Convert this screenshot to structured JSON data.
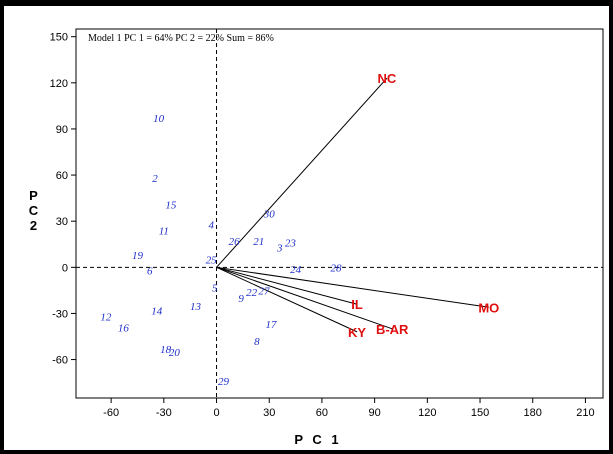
{
  "chart_data": {
    "type": "scatter",
    "annotation": "Model 1 PC 1 = 64% PC 2 = 22% Sum = 86%",
    "xlabel": "P C 1",
    "ylabel_lines": [
      "P",
      "C",
      "2"
    ],
    "xlim": [
      -80,
      220
    ],
    "ylim": [
      -85,
      155
    ],
    "xticks": [
      -60,
      -30,
      0,
      30,
      60,
      90,
      120,
      150,
      180,
      210
    ],
    "yticks": [
      150,
      120,
      90,
      60,
      30,
      0,
      -30,
      -60
    ],
    "grid": false,
    "reference_lines": {
      "x": 0,
      "y": 0,
      "style": "dashed"
    },
    "points": [
      {
        "label": "10",
        "x": -33,
        "y": 97
      },
      {
        "label": "2",
        "x": -35,
        "y": 58
      },
      {
        "label": "15",
        "x": -26,
        "y": 41
      },
      {
        "label": "11",
        "x": -30,
        "y": 24
      },
      {
        "label": "4",
        "x": -3,
        "y": 28
      },
      {
        "label": "30",
        "x": 30,
        "y": 35
      },
      {
        "label": "26",
        "x": 10,
        "y": 17
      },
      {
        "label": "21",
        "x": 24,
        "y": 17
      },
      {
        "label": "3",
        "x": 36,
        "y": 13
      },
      {
        "label": "23",
        "x": 42,
        "y": 16
      },
      {
        "label": "19",
        "x": -45,
        "y": 8
      },
      {
        "label": "25",
        "x": -3,
        "y": 5
      },
      {
        "label": "6",
        "x": -38,
        "y": -2
      },
      {
        "label": "24",
        "x": 45,
        "y": -1
      },
      {
        "label": "28",
        "x": 68,
        "y": 0
      },
      {
        "label": "5",
        "x": -1,
        "y": -13
      },
      {
        "label": "22",
        "x": 20,
        "y": -16
      },
      {
        "label": "27",
        "x": 27,
        "y": -15
      },
      {
        "label": "9",
        "x": 14,
        "y": -20
      },
      {
        "label": "13",
        "x": -12,
        "y": -25
      },
      {
        "label": "12",
        "x": -63,
        "y": -32
      },
      {
        "label": "14",
        "x": -34,
        "y": -28
      },
      {
        "label": "16",
        "x": -53,
        "y": -39
      },
      {
        "label": "17",
        "x": 31,
        "y": -37
      },
      {
        "label": "8",
        "x": 23,
        "y": -48
      },
      {
        "label": "18",
        "x": -29,
        "y": -53
      },
      {
        "label": "20",
        "x": -24,
        "y": -55
      },
      {
        "label": "29",
        "x": 4,
        "y": -74
      }
    ],
    "vectors": [
      {
        "label": "NC",
        "x": 97,
        "y": 123
      },
      {
        "label": "IL",
        "x": 80,
        "y": -24
      },
      {
        "label": "MO",
        "x": 155,
        "y": -26
      },
      {
        "label": "B-AR",
        "x": 100,
        "y": -40
      },
      {
        "label": "KY",
        "x": 80,
        "y": -42
      }
    ],
    "colors": {
      "points": "#2030c8",
      "vectors": "#e01010",
      "vector_lines": "#000000"
    }
  }
}
